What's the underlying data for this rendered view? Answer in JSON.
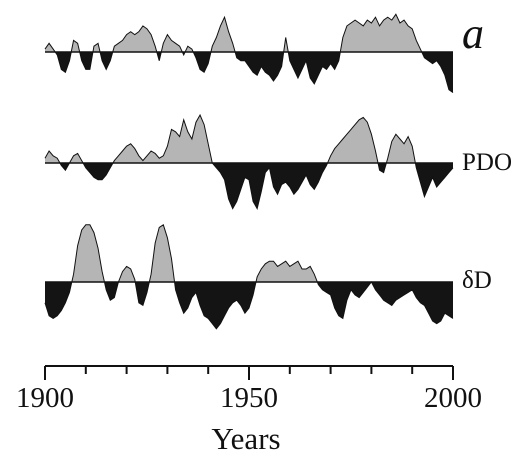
{
  "chart_data": {
    "type": "area",
    "panel_label": "a",
    "xlabel": "Years",
    "xlim": [
      1900,
      2000
    ],
    "xticks": [
      1900,
      1950,
      2000
    ],
    "xtick_labels": [
      "1900",
      "1950",
      "2000"
    ],
    "grid": false,
    "colors": {
      "positive": "#b5b5b5",
      "negative": "#141414",
      "line": "#111111"
    },
    "series": [
      {
        "name": "",
        "label": "",
        "x": [
          1900,
          1901,
          1902,
          1903,
          1904,
          1905,
          1906,
          1907,
          1908,
          1909,
          1910,
          1911,
          1912,
          1913,
          1914,
          1915,
          1916,
          1917,
          1918,
          1919,
          1920,
          1921,
          1922,
          1923,
          1924,
          1925,
          1926,
          1927,
          1928,
          1929,
          1930,
          1931,
          1932,
          1933,
          1934,
          1935,
          1936,
          1937,
          1938,
          1939,
          1940,
          1941,
          1942,
          1943,
          1944,
          1945,
          1946,
          1947,
          1948,
          1949,
          1950,
          1951,
          1952,
          1953,
          1954,
          1955,
          1956,
          1957,
          1958,
          1959,
          1960,
          1961,
          1962,
          1963,
          1964,
          1965,
          1966,
          1967,
          1968,
          1969,
          1970,
          1971,
          1972,
          1973,
          1974,
          1975,
          1976,
          1977,
          1978,
          1979,
          1980,
          1981,
          1982,
          1983,
          1984,
          1985,
          1986,
          1987,
          1988,
          1989,
          1990,
          1991,
          1992,
          1993,
          1994,
          1995,
          1996,
          1997,
          1998,
          1999,
          2000
        ],
        "y": [
          0.1,
          0.3,
          0.1,
          -0.1,
          -0.6,
          -0.7,
          -0.3,
          0.4,
          0.3,
          -0.3,
          -0.6,
          -0.6,
          0.2,
          0.3,
          -0.3,
          -0.6,
          -0.3,
          0.2,
          0.3,
          0.4,
          0.6,
          0.7,
          0.6,
          0.7,
          0.9,
          0.8,
          0.6,
          0.2,
          -0.3,
          0.3,
          0.6,
          0.4,
          0.3,
          0.2,
          -0.1,
          0.2,
          0.1,
          -0.2,
          -0.6,
          -0.7,
          -0.4,
          0.2,
          0.5,
          0.9,
          1.2,
          0.7,
          0.3,
          -0.2,
          -0.3,
          -0.3,
          -0.5,
          -0.7,
          -0.8,
          -0.5,
          -0.7,
          -0.8,
          -1.0,
          -0.8,
          -0.5,
          0.5,
          -0.3,
          -0.6,
          -0.9,
          -0.6,
          -0.3,
          -0.9,
          -1.1,
          -0.8,
          -0.5,
          -0.6,
          -0.4,
          -0.6,
          -0.3,
          0.5,
          0.9,
          1.0,
          1.1,
          1.0,
          0.9,
          1.1,
          1.0,
          1.2,
          0.9,
          1.1,
          1.2,
          1.1,
          1.3,
          1.0,
          1.1,
          0.9,
          0.8,
          0.4,
          0.1,
          -0.2,
          -0.3,
          -0.4,
          -0.3,
          -0.5,
          -0.8,
          -1.3,
          -1.4
        ]
      },
      {
        "name": "PDO",
        "label": "PDO",
        "x": [
          1900,
          1901,
          1902,
          1903,
          1904,
          1905,
          1906,
          1907,
          1908,
          1909,
          1910,
          1911,
          1912,
          1913,
          1914,
          1915,
          1916,
          1917,
          1918,
          1919,
          1920,
          1921,
          1922,
          1923,
          1924,
          1925,
          1926,
          1927,
          1928,
          1929,
          1930,
          1931,
          1932,
          1933,
          1934,
          1935,
          1936,
          1937,
          1938,
          1939,
          1940,
          1941,
          1942,
          1943,
          1944,
          1945,
          1946,
          1947,
          1948,
          1949,
          1950,
          1951,
          1952,
          1953,
          1954,
          1955,
          1956,
          1957,
          1958,
          1959,
          1960,
          1961,
          1962,
          1963,
          1964,
          1965,
          1966,
          1967,
          1968,
          1969,
          1970,
          1971,
          1972,
          1973,
          1974,
          1975,
          1976,
          1977,
          1978,
          1979,
          1980,
          1981,
          1982,
          1983,
          1984,
          1985,
          1986,
          1987,
          1988,
          1989,
          1990,
          1991,
          1992,
          1993,
          1994,
          1995,
          1996,
          1997,
          1998,
          1999,
          2000
        ],
        "y": [
          0.2,
          0.5,
          0.3,
          0.2,
          -0.1,
          -0.3,
          0.0,
          0.3,
          0.4,
          0.1,
          -0.2,
          -0.4,
          -0.6,
          -0.7,
          -0.7,
          -0.5,
          -0.2,
          0.1,
          0.3,
          0.5,
          0.7,
          0.8,
          0.6,
          0.3,
          0.1,
          0.3,
          0.5,
          0.4,
          0.2,
          0.3,
          0.7,
          1.4,
          1.3,
          1.1,
          1.8,
          1.3,
          1.0,
          1.7,
          2.0,
          1.6,
          0.8,
          0.0,
          -0.2,
          -0.4,
          -0.7,
          -1.5,
          -1.9,
          -1.6,
          -1.1,
          -0.6,
          -0.7,
          -1.6,
          -1.9,
          -1.2,
          -0.4,
          -0.2,
          -1.0,
          -1.3,
          -0.9,
          -0.8,
          -1.0,
          -1.3,
          -1.1,
          -0.8,
          -0.5,
          -0.9,
          -1.1,
          -0.8,
          -0.4,
          -0.1,
          0.3,
          0.6,
          0.8,
          1.0,
          1.2,
          1.4,
          1.6,
          1.8,
          1.9,
          1.7,
          1.2,
          0.5,
          -0.3,
          -0.4,
          0.2,
          0.9,
          1.2,
          1.0,
          0.8,
          1.1,
          0.7,
          -0.2,
          -0.8,
          -1.4,
          -1.0,
          -0.6,
          -1.0,
          -0.8,
          -0.6,
          -0.4,
          -0.2
        ]
      },
      {
        "name": "δD",
        "label": "δD",
        "x": [
          1900,
          1901,
          1902,
          1903,
          1904,
          1905,
          1906,
          1907,
          1908,
          1909,
          1910,
          1911,
          1912,
          1913,
          1914,
          1915,
          1916,
          1917,
          1918,
          1919,
          1920,
          1921,
          1922,
          1923,
          1924,
          1925,
          1926,
          1927,
          1928,
          1929,
          1930,
          1931,
          1932,
          1933,
          1934,
          1935,
          1936,
          1937,
          1938,
          1939,
          1940,
          1941,
          1942,
          1943,
          1944,
          1945,
          1946,
          1947,
          1948,
          1949,
          1950,
          1951,
          1952,
          1953,
          1954,
          1955,
          1956,
          1957,
          1958,
          1959,
          1960,
          1961,
          1962,
          1963,
          1964,
          1965,
          1966,
          1967,
          1968,
          1969,
          1970,
          1971,
          1972,
          1973,
          1974,
          1975,
          1976,
          1977,
          1978,
          1979,
          1980,
          1981,
          1982,
          1983,
          1984,
          1985,
          1986,
          1987,
          1988,
          1989,
          1990,
          1991,
          1992,
          1993,
          1994,
          1995,
          1996,
          1997,
          1998,
          1999,
          2000
        ],
        "y": [
          -0.8,
          -1.3,
          -1.4,
          -1.3,
          -1.1,
          -0.8,
          -0.4,
          0.3,
          1.4,
          2.0,
          2.2,
          2.2,
          1.9,
          1.3,
          0.4,
          -0.3,
          -0.7,
          -0.6,
          0.0,
          0.4,
          0.6,
          0.5,
          0.1,
          -0.8,
          -0.9,
          -0.4,
          0.3,
          1.5,
          2.1,
          2.2,
          1.7,
          0.9,
          -0.3,
          -0.8,
          -1.2,
          -1.0,
          -0.6,
          -0.4,
          -0.9,
          -1.3,
          -1.4,
          -1.6,
          -1.8,
          -1.6,
          -1.3,
          -1.0,
          -0.8,
          -0.7,
          -0.9,
          -1.2,
          -1.0,
          -0.5,
          0.2,
          0.5,
          0.7,
          0.8,
          0.8,
          0.6,
          0.7,
          0.8,
          0.6,
          0.7,
          0.8,
          0.5,
          0.5,
          0.6,
          0.3,
          -0.1,
          -0.3,
          -0.4,
          -0.5,
          -1.0,
          -1.3,
          -1.4,
          -0.7,
          -0.3,
          -0.5,
          -0.6,
          -0.4,
          -0.2,
          0.0,
          -0.3,
          -0.5,
          -0.7,
          -0.8,
          -0.9,
          -0.7,
          -0.6,
          -0.5,
          -0.4,
          -0.3,
          -0.6,
          -0.8,
          -0.9,
          -1.2,
          -1.5,
          -1.6,
          -1.5,
          -1.2,
          -1.3,
          -1.4
        ]
      }
    ]
  }
}
